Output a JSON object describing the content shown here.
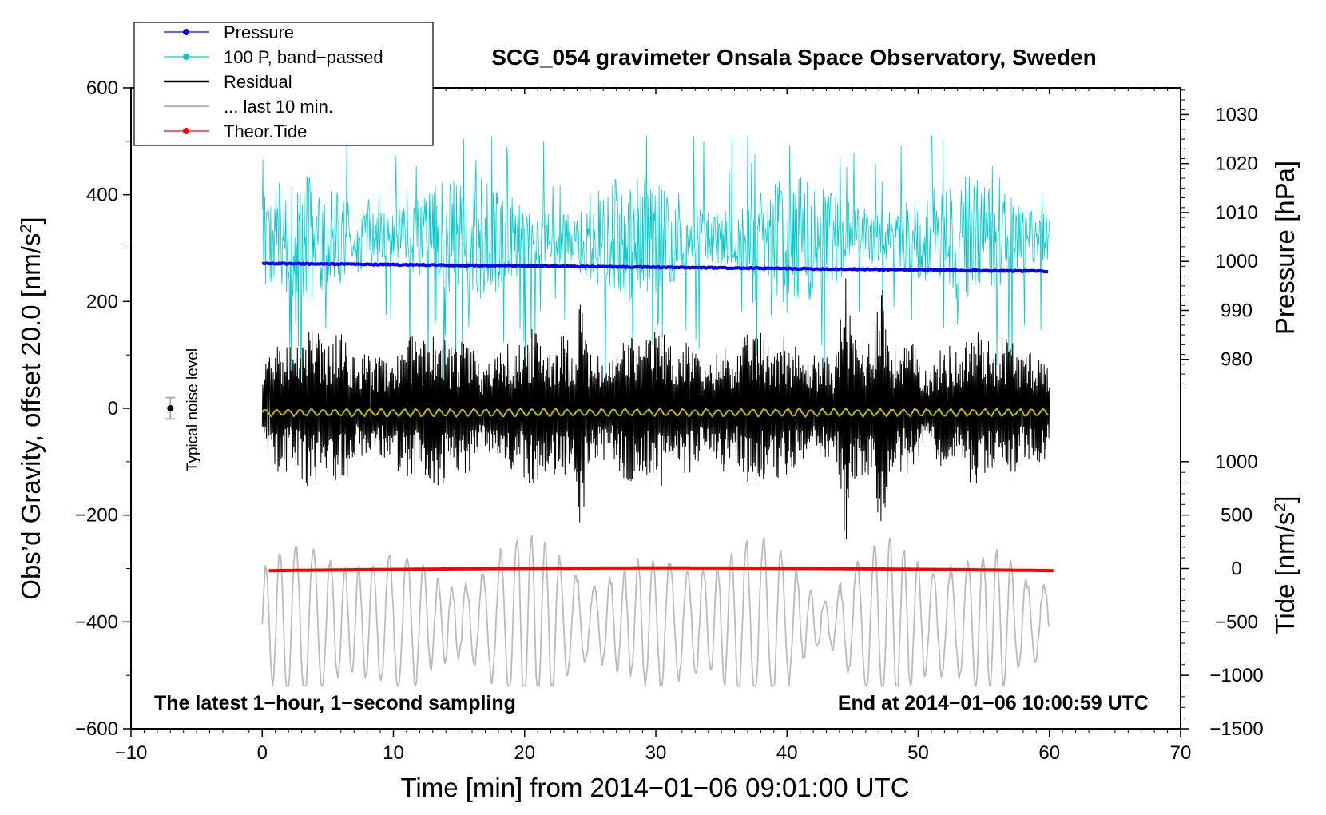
{
  "chart_data": {
    "type": "line",
    "title": "SCG_054 gravimeter Onsala Space Observatory, Sweden",
    "xlabel": "Time [min] from 2014−01−06 09:01:00 UTC",
    "ylabel_left": "Obs’d Gravity, offset 20.0 [nm/s",
    "ylabel_left_sup": "2",
    "ylabel_left_end": "]",
    "ylabel_right_pressure": "Pressure [hPa]",
    "ylabel_right_tide": "Tide [nm/s",
    "ylabel_right_tide_sup": "2",
    "ylabel_right_tide_end": "]",
    "xlim": [
      -10,
      70
    ],
    "ylim_left": [
      -600,
      600
    ],
    "x_ticks": [
      -10,
      0,
      10,
      20,
      30,
      40,
      50,
      60,
      70
    ],
    "x_tick_labels": [
      "−10",
      "0",
      "10",
      "20",
      "30",
      "40",
      "50",
      "60",
      "70"
    ],
    "y_left_ticks": [
      -600,
      -400,
      -200,
      0,
      200,
      400,
      600
    ],
    "y_left_tick_labels": [
      "−600",
      "−400",
      "−200",
      "0",
      "200",
      "400",
      "600"
    ],
    "pressure_axis": {
      "ticks": [
        980,
        990,
        1000,
        1010,
        1020,
        1030
      ],
      "tick_labels": [
        "980",
        "990",
        "1000",
        "1010",
        "1020",
        "1030"
      ],
      "left_value_equivalent": {
        "1000": 275,
        "1030": 550
      }
    },
    "tide_axis": {
      "ticks": [
        -1500,
        -1000,
        -500,
        0,
        500,
        1000
      ],
      "tick_labels": [
        "−1500",
        "−1000",
        "−500",
        "0",
        "500",
        "1000"
      ],
      "left_value_equivalent": {
        "-1500": -600,
        "0": -300,
        "1000": -100
      }
    },
    "annotation_left": "The latest 1−hour, 1−second sampling",
    "annotation_right": "End at 2014−01−06 10:00:59 UTC",
    "noise_label": "Typical noise level",
    "noise_marker": {
      "x": -7,
      "y": 0,
      "err": 20
    },
    "legend": [
      {
        "label": "Pressure",
        "color": "#0000ff",
        "marker": true
      },
      {
        "label": "100 P, band−passed",
        "color": "#00cccc",
        "marker": true
      },
      {
        "label": "Residual",
        "color": "#000000",
        "marker": false
      },
      {
        "label": "... last 10 min.",
        "color": "#bbbbbb",
        "marker": false
      },
      {
        "label": "Theor.Tide",
        "color": "#ff0000",
        "marker": true
      }
    ],
    "series": [
      {
        "name": "Pressure",
        "color": "#0000ff",
        "x_range": [
          0,
          60
        ],
        "values_hpa": {
          "start": 999.6,
          "end": 998.0
        }
      },
      {
        "name": "100 P, band−passed",
        "color": "#00cccc",
        "x_range": [
          0,
          60
        ],
        "center": 320,
        "amplitude": 120
      },
      {
        "name": "Residual",
        "color": "#000000",
        "x_range": [
          0,
          60
        ],
        "center": 0,
        "amplitude": 150,
        "bursts": [
          {
            "x": 24.3,
            "peak": 270,
            "trough": -250
          },
          {
            "x": 47.1,
            "peak": 250,
            "trough": -250
          },
          {
            "x": 44.4,
            "peak": 130,
            "trough": -240
          }
        ]
      },
      {
        "name": "Residual smoothed",
        "color": "#bbbb00",
        "x_range": [
          0,
          60
        ],
        "center": -8,
        "amplitude": 8
      },
      {
        "name": "... last 10 min.",
        "color": "#bbbbbb",
        "x_range": [
          0,
          60
        ],
        "center": -400,
        "amplitude": 130
      },
      {
        "name": "Theor.Tide",
        "color": "#ff0000",
        "x_range": [
          0.5,
          60.5
        ],
        "values_nms2": {
          "start": -20,
          "mid": 5,
          "end": -20
        }
      }
    ]
  }
}
